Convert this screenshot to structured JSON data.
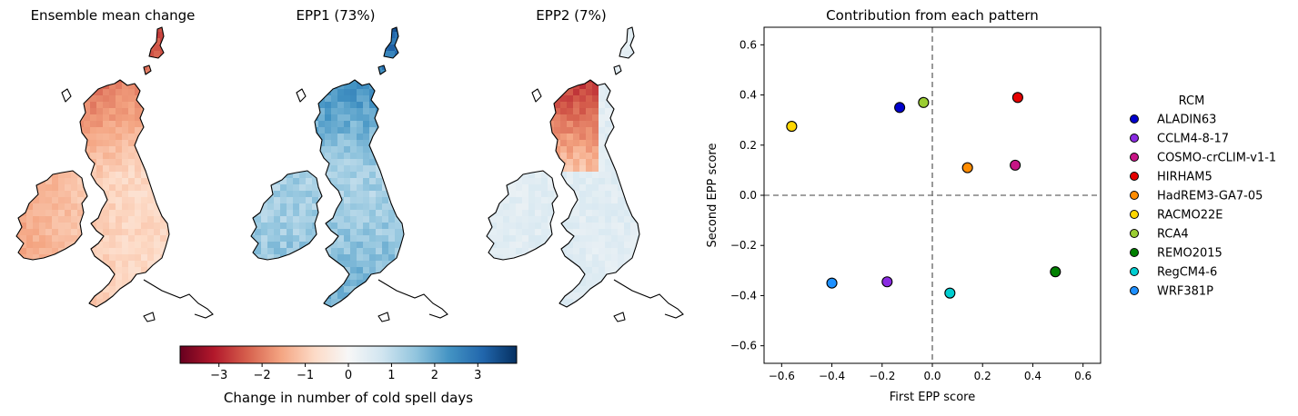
{
  "maps": [
    {
      "title": "Ensemble mean change",
      "pattern": "mean"
    },
    {
      "title": "EPP1 (73%)",
      "pattern": "epp1"
    },
    {
      "title": "EPP2 (7%)",
      "pattern": "epp2"
    }
  ],
  "colorbar": {
    "label": "Change in number of cold spell days",
    "ticks": [
      -3,
      -2,
      -1,
      0,
      1,
      2,
      3
    ],
    "tick_labels": [
      "−3",
      "−2",
      "−1",
      "0",
      "1",
      "2",
      "3"
    ],
    "range": [
      -3.9,
      3.9
    ],
    "colormap": "RdBu",
    "colors": [
      "#67001f",
      "#b2182b",
      "#d6604d",
      "#f4a582",
      "#fddbc7",
      "#f7f7f7",
      "#d1e5f0",
      "#92c5de",
      "#4393c3",
      "#2166ac",
      "#053061"
    ]
  },
  "chart_data": {
    "type": "scatter",
    "title": "Contribution from each pattern",
    "xlabel": "First EPP score",
    "ylabel": "Second EPP score",
    "xlim": [
      -0.67,
      0.67
    ],
    "ylim": [
      -0.67,
      0.67
    ],
    "xticks": [
      -0.6,
      -0.4,
      -0.2,
      0.0,
      0.2,
      0.4,
      0.6
    ],
    "yticks": [
      -0.6,
      -0.4,
      -0.2,
      0.0,
      0.2,
      0.4,
      0.6
    ],
    "reference_lines": {
      "x": 0,
      "y": 0,
      "style": "dashed",
      "color": "#808080"
    },
    "legend": {
      "title": "RCM",
      "placement": "right, outside"
    },
    "series": [
      {
        "name": "ALADIN63",
        "x": -0.13,
        "y": 0.35,
        "color": "#0000cd"
      },
      {
        "name": "CCLM4-8-17",
        "x": -0.18,
        "y": -0.345,
        "color": "#8a2be2"
      },
      {
        "name": "COSMO-crCLIM-v1-1",
        "x": 0.33,
        "y": 0.12,
        "color": "#c71585"
      },
      {
        "name": "HIRHAM5",
        "x": 0.34,
        "y": 0.39,
        "color": "#e60000"
      },
      {
        "name": "HadREM3-GA7-05",
        "x": 0.14,
        "y": 0.11,
        "color": "#ff8c00"
      },
      {
        "name": "RACMO22E",
        "x": -0.56,
        "y": 0.275,
        "color": "#ffd700"
      },
      {
        "name": "RCA4",
        "x": -0.035,
        "y": 0.37,
        "color": "#9acd32"
      },
      {
        "name": "REMO2015",
        "x": 0.49,
        "y": -0.305,
        "color": "#008000"
      },
      {
        "name": "RegCM4-6",
        "x": 0.07,
        "y": -0.39,
        "color": "#00ced1"
      },
      {
        "name": "WRF381P",
        "x": -0.4,
        "y": -0.35,
        "color": "#1e90ff"
      }
    ]
  }
}
